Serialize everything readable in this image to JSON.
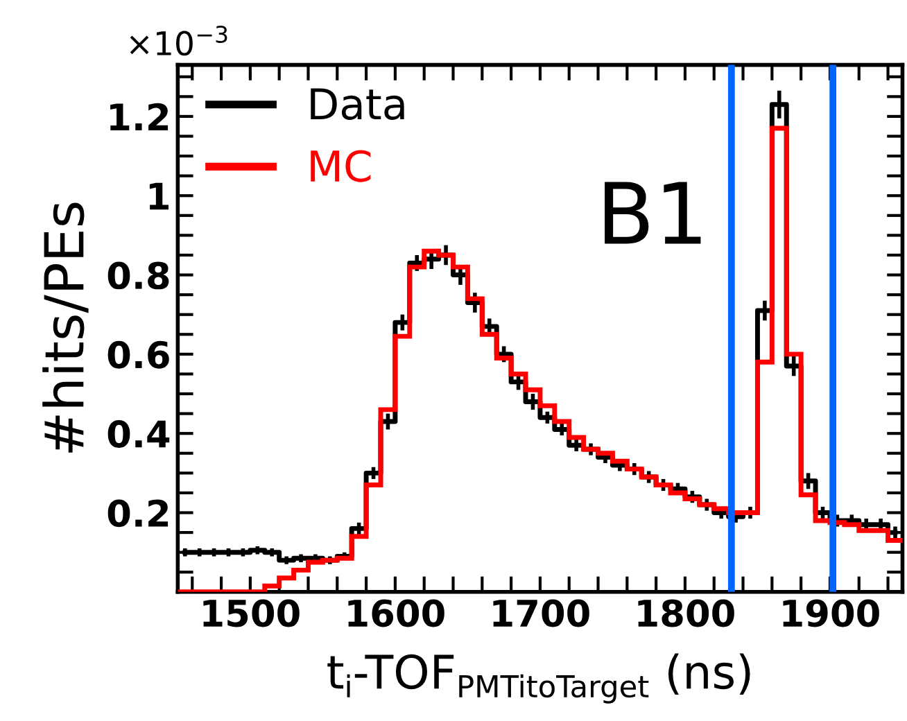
{
  "chart_data": {
    "type": "histogram",
    "xlabel": "t$_{i}$-TOF$_{PMTitoTarget}$ (ns)",
    "ylabel": "#hits/PEs",
    "annotations": [
      "×10$^{−3}$",
      "B1"
    ],
    "bins": [
      1450,
      1460,
      1470,
      1480,
      1490,
      1500,
      1510,
      1520,
      1530,
      1540,
      1550,
      1560,
      1570,
      1580,
      1590,
      1600,
      1610,
      1620,
      1630,
      1640,
      1650,
      1660,
      1670,
      1680,
      1690,
      1700,
      1710,
      1720,
      1730,
      1740,
      1750,
      1760,
      1770,
      1780,
      1790,
      1800,
      1810,
      1820,
      1830,
      1840,
      1850,
      1860,
      1870,
      1880,
      1890,
      1900,
      1910,
      1920,
      1930,
      1940,
      1950
    ],
    "series": [
      {
        "name": "Data",
        "type": "step",
        "x": [
          1455,
          1465,
          1475,
          1485,
          1495,
          1505,
          1515,
          1525,
          1535,
          1545,
          1555,
          1565,
          1575,
          1585,
          1595,
          1605,
          1615,
          1625,
          1635,
          1645,
          1655,
          1665,
          1675,
          1685,
          1695,
          1705,
          1715,
          1725,
          1735,
          1745,
          1755,
          1765,
          1775,
          1785,
          1795,
          1805,
          1815,
          1825,
          1835,
          1845,
          1855,
          1865,
          1875,
          1885,
          1895,
          1905,
          1915,
          1925,
          1935,
          1945
        ],
        "color": "#000000",
        "values": [
          0.1,
          0.1,
          0.1,
          0.1,
          0.1,
          0.105,
          0.1,
          0.08,
          0.085,
          0.085,
          0.08,
          0.09,
          0.16,
          0.3,
          0.43,
          0.68,
          0.83,
          0.84,
          0.85,
          0.8,
          0.73,
          0.67,
          0.6,
          0.53,
          0.48,
          0.44,
          0.41,
          0.37,
          0.36,
          0.34,
          0.32,
          0.31,
          0.29,
          0.27,
          0.26,
          0.24,
          0.22,
          0.2,
          0.19,
          0.2,
          0.71,
          1.23,
          0.57,
          0.28,
          0.2,
          0.18,
          0.18,
          0.17,
          0.17,
          0.15
        ],
        "errors": [
          0.01,
          0.01,
          0.01,
          0.01,
          0.01,
          0.01,
          0.01,
          0.01,
          0.01,
          0.01,
          0.01,
          0.01,
          0.015,
          0.015,
          0.02,
          0.02,
          0.02,
          0.025,
          0.025,
          0.025,
          0.025,
          0.02,
          0.02,
          0.02,
          0.02,
          0.015,
          0.015,
          0.015,
          0.015,
          0.015,
          0.015,
          0.015,
          0.015,
          0.015,
          0.015,
          0.015,
          0.015,
          0.015,
          0.015,
          0.015,
          0.025,
          0.035,
          0.025,
          0.02,
          0.015,
          0.015,
          0.015,
          0.015,
          0.015,
          0.015
        ]
      },
      {
        "name": "MC",
        "color": "#ff0000",
        "values": [
          0,
          0,
          0,
          0,
          0,
          0,
          0.015,
          0.035,
          0.055,
          0.075,
          0.08,
          0.085,
          0.14,
          0.27,
          0.46,
          0.645,
          0.82,
          0.86,
          0.85,
          0.82,
          0.74,
          0.65,
          0.59,
          0.55,
          0.51,
          0.47,
          0.43,
          0.39,
          0.36,
          0.35,
          0.33,
          0.31,
          0.29,
          0.27,
          0.25,
          0.235,
          0.22,
          0.21,
          0.2,
          0.2,
          0.58,
          1.17,
          0.6,
          0.245,
          0.18,
          0.175,
          0.17,
          0.155,
          0.155,
          0.13
        ]
      }
    ],
    "ref_lines": [
      {
        "axis": "x",
        "value": 1832,
        "label": null,
        "color": "#0066ff"
      },
      {
        "axis": "x",
        "value": 1902,
        "label": null,
        "color": "#0066ff"
      }
    ],
    "xlim": [
      1450,
      1950
    ],
    "ylim": [
      0,
      1.33
    ],
    "xticks": [
      {
        "value": 1460,
        "label": null
      },
      {
        "value": 1480,
        "label": null
      },
      1500,
      {
        "value": 1520,
        "label": null
      },
      {
        "value": 1540,
        "label": null
      },
      {
        "value": 1560,
        "label": null
      },
      {
        "value": 1580,
        "label": null
      },
      1600,
      {
        "value": 1620,
        "label": null
      },
      {
        "value": 1640,
        "label": null
      },
      {
        "value": 1660,
        "label": null
      },
      {
        "value": 1680,
        "label": null
      },
      1700,
      {
        "value": 1720,
        "label": null
      },
      {
        "value": 1740,
        "label": null
      },
      {
        "value": 1760,
        "label": null
      },
      {
        "value": 1780,
        "label": null
      },
      1800,
      {
        "value": 1820,
        "label": null
      },
      {
        "value": 1840,
        "label": null
      },
      {
        "value": 1860,
        "label": null
      },
      {
        "value": 1880,
        "label": null
      },
      1900,
      {
        "value": 1920,
        "label": null
      },
      {
        "value": 1940,
        "label": null
      }
    ],
    "yticks": [
      {
        "value": 0.05,
        "label": null
      },
      {
        "value": 0.1,
        "label": null
      },
      {
        "value": 0.15,
        "label": null
      },
      0.2,
      {
        "value": 0.25,
        "label": null
      },
      {
        "value": 0.3,
        "label": null
      },
      {
        "value": 0.35,
        "label": null
      },
      0.4,
      {
        "value": 0.45,
        "label": null
      },
      {
        "value": 0.5,
        "label": null
      },
      {
        "value": 0.55,
        "label": null
      },
      0.6,
      {
        "value": 0.65,
        "label": null
      },
      {
        "value": 0.7,
        "label": null
      },
      {
        "value": 0.75,
        "label": null
      },
      0.8,
      {
        "value": 0.85,
        "label": null
      },
      {
        "value": 0.9,
        "label": null
      },
      {
        "value": 0.95,
        "label": null
      },
      1,
      {
        "value": 1.05,
        "label": null
      },
      {
        "value": 1.1,
        "label": null
      },
      {
        "value": 1.15,
        "label": null
      },
      1.2,
      {
        "value": 1.25,
        "label": null
      },
      {
        "value": 1.3,
        "label": null
      }
    ],
    "legend": "top left",
    "grid": false
  }
}
